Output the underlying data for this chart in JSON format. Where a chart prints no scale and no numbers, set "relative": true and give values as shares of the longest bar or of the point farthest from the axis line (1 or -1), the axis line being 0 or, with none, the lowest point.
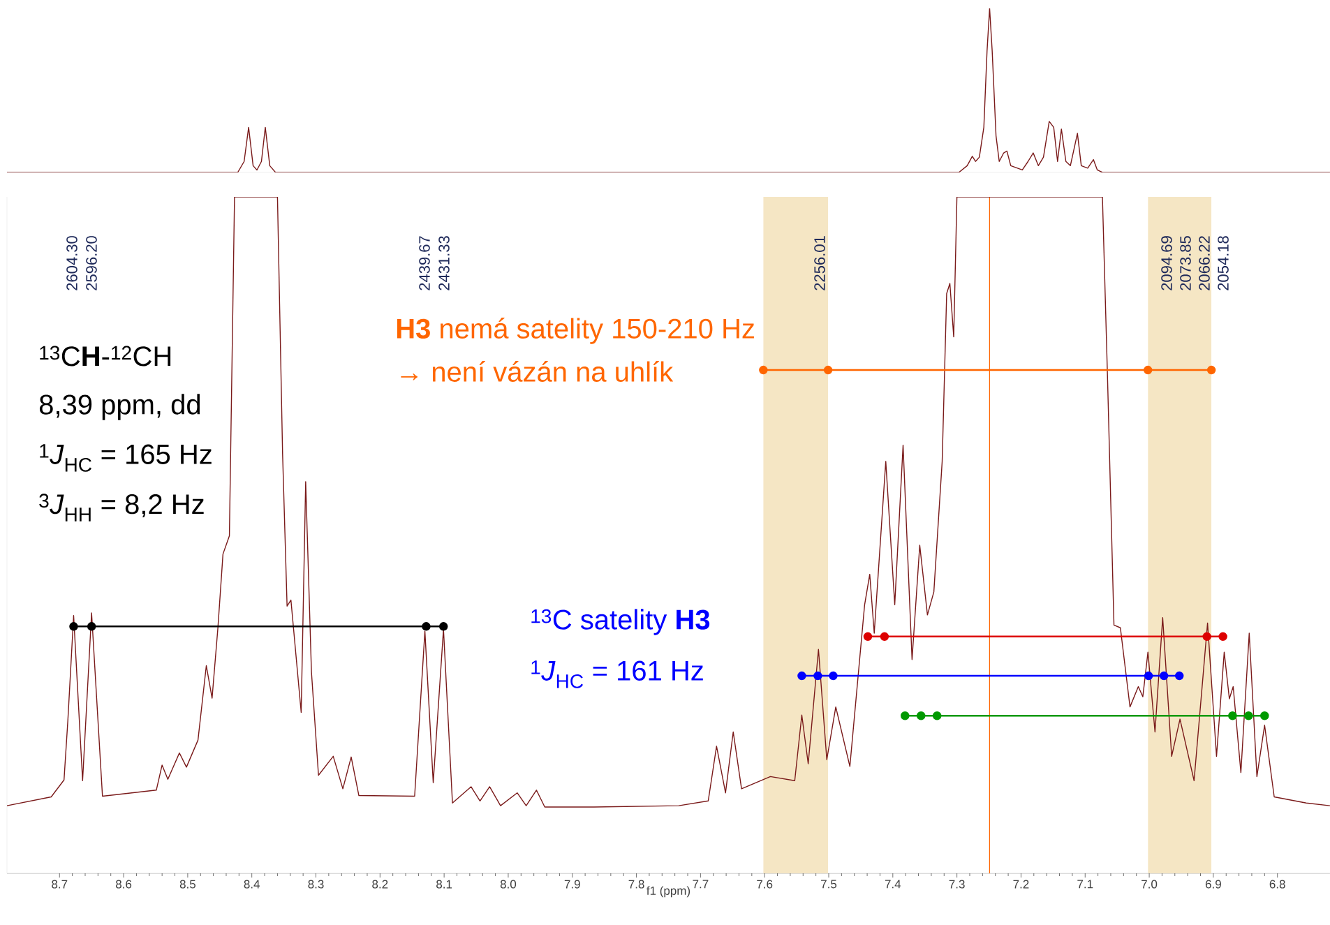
{
  "chart_data": [
    {
      "type": "line",
      "relative": true,
      "xlim": [
        8.782,
        6.718
      ],
      "color": "#7a1a1a",
      "x": [
        8.782,
        8.422,
        8.412,
        8.405,
        8.398,
        8.392,
        8.385,
        8.379,
        8.372,
        8.363,
        7.297,
        7.284,
        7.276,
        7.271,
        7.265,
        7.258,
        7.253,
        7.249,
        7.245,
        7.239,
        7.234,
        7.227,
        7.222,
        7.216,
        7.198,
        7.189,
        7.181,
        7.173,
        7.165,
        7.156,
        7.149,
        7.143,
        7.137,
        7.13,
        7.123,
        7.112,
        7.106,
        7.096,
        7.087,
        7.081,
        7.073,
        6.718
      ],
      "values": [
        0,
        0,
        0.067,
        0.275,
        0.041,
        0.015,
        0.067,
        0.275,
        0.041,
        0,
        0,
        0.041,
        0.098,
        0.067,
        0.093,
        0.275,
        0.741,
        1,
        0.741,
        0.223,
        0.067,
        0.119,
        0.13,
        0.041,
        0.015,
        0.067,
        0.119,
        0.041,
        0.093,
        0.311,
        0.275,
        0.067,
        0.264,
        0.067,
        0.041,
        0.238,
        0.041,
        0.026,
        0.078,
        0.015,
        0,
        0
      ]
    },
    {
      "type": "line",
      "relative": true,
      "xlim": [
        8.782,
        6.718
      ],
      "xlabel": "f1 (ppm)",
      "xticks": [
        8.7,
        8.6,
        8.5,
        8.4,
        8.3,
        8.2,
        8.1,
        {
          "value": 8,
          "label": "8.0"
        },
        7.9,
        7.8,
        7.7,
        7.6,
        7.5,
        7.4,
        7.3,
        7.2,
        7.1,
        {
          "value": 7,
          "label": "7.0"
        },
        6.9,
        6.8
      ],
      "bands": [
        {
          "axis": "x",
          "from": 7.602,
          "to": 7.501,
          "color": "#f5e6c4"
        },
        {
          "axis": "x",
          "from": 7.002,
          "to": 6.903,
          "color": "#f5e6c4"
        }
      ],
      "ref_lines": [
        {
          "axis": "x",
          "value": 7.249,
          "color": "#ff6600"
        }
      ],
      "series": [
        {
          "color": "#7a1a1a",
          "marker": "none",
          "x": [
            8.782,
            8.713,
            8.693,
            8.687,
            8.678,
            8.664,
            8.65,
            8.633,
            8.549,
            8.54,
            8.531,
            8.513,
            8.502,
            8.484,
            8.471,
            8.462,
            8.453,
            8.445,
            8.435,
            8.427,
            8.396,
            8.36,
            8.352,
            8.345,
            8.339,
            8.323,
            8.316,
            8.307,
            8.296,
            8.273,
            8.258,
            8.245,
            8.233,
            8.146,
            8.13,
            8.117,
            8.101,
            8.087,
            8.058,
            8.044,
            8.029,
            8.012,
            7.986,
            7.972,
            7.956,
            7.943,
            7.866,
            7.734,
            7.688,
            7.675,
            7.661,
            7.649,
            7.636,
            7.591,
            7.553,
            7.542,
            7.532,
            7.516,
            7.503,
            7.489,
            7.467,
            7.444,
            7.436,
            7.429,
            7.411,
            7.397,
            7.384,
            7.37,
            7.358,
            7.346,
            7.336,
            7.323,
            7.316,
            7.311,
            7.305,
            7.3,
            7.205,
            7.073,
            7.065,
            7.055,
            7.045,
            7.03,
            7.017,
            7.01,
            7.002,
            6.991,
            6.979,
            6.965,
            6.952,
            6.93,
            6.909,
            6.895,
            6.883,
            6.875,
            6.869,
            6.857,
            6.844,
            6.832,
            6.82,
            6.805,
            6.755,
            6.718
          ],
          "values": [
            0.1,
            0.113,
            0.138,
            0.226,
            0.381,
            0.137,
            0.385,
            0.114,
            0.123,
            0.16,
            0.139,
            0.178,
            0.157,
            0.197,
            0.307,
            0.259,
            0.362,
            0.472,
            0.499,
            1,
            1,
            1,
            0.62,
            0.395,
            0.404,
            0.238,
            0.579,
            0.298,
            0.145,
            0.173,
            0.125,
            0.172,
            0.115,
            0.114,
            0.358,
            0.134,
            0.361,
            0.104,
            0.128,
            0.107,
            0.128,
            0.1,
            0.119,
            0.1,
            0.123,
            0.098,
            0.098,
            0.1,
            0.107,
            0.188,
            0.119,
            0.209,
            0.125,
            0.143,
            0.137,
            0.234,
            0.162,
            0.331,
            0.168,
            0.246,
            0.158,
            0.397,
            0.442,
            0.355,
            0.609,
            0.397,
            0.633,
            0.316,
            0.485,
            0.382,
            0.416,
            0.609,
            0.857,
            0.872,
            0.793,
            1,
            1,
            1,
            0.731,
            0.367,
            0.363,
            0.246,
            0.276,
            0.261,
            0.327,
            0.209,
            0.378,
            0.173,
            0.228,
            0.137,
            0.37,
            0.173,
            0.327,
            0.258,
            0.276,
            0.149,
            0.355,
            0.143,
            0.219,
            0.113,
            0.104,
            0.1
          ]
        },
        {
          "color": "#000000",
          "marker": "circle",
          "x": [
            8.678,
            8.65,
            8.128,
            8.101
          ],
          "values": [
            0.365,
            0.365,
            0.365,
            0.365
          ]
        },
        {
          "color": "#dd0000",
          "marker": "circle",
          "x": [
            7.439,
            7.413,
            6.91,
            6.885
          ],
          "values": [
            0.35,
            0.35,
            0.35,
            0.35
          ]
        },
        {
          "color": "#0000ff",
          "marker": "circle",
          "x": [
            7.542,
            7.517,
            7.493,
            7.001,
            6.977,
            6.953
          ],
          "values": [
            0.292,
            0.292,
            0.292,
            0.292,
            0.292,
            0.292
          ]
        },
        {
          "color": "#009900",
          "marker": "circle",
          "x": [
            7.381,
            7.356,
            7.331,
            6.87,
            6.845,
            6.82
          ],
          "values": [
            0.233,
            0.233,
            0.233,
            0.233,
            0.233,
            0.233
          ]
        },
        {
          "color": "#ff6600",
          "marker": "circle",
          "x": [
            7.602,
            7.501,
            7.002,
            6.903
          ],
          "values": [
            0.744,
            0.744,
            0.744,
            0.744
          ]
        }
      ],
      "annotations": [
        "2604.30",
        "2596.20",
        "2439.67",
        "2431.33",
        "2256.01",
        "2094.69",
        "2073.85",
        "2066.22",
        "2054.18",
        "$^{13}$C**H**-$^{12}$CH",
        "8,39 ppm, dd",
        "$^{1}$*J*$_{HC}$ = 165 Hz",
        "$^{3}$*J*$_{HH}$ = 8,2 Hz",
        "**H3** nemá satelity 150-210 Hz",
        "→  není vázán na uhlík",
        "$^{13}$C satelity **H3**",
        "$^{1}$*J*$_{HC}$ = 161 Hz"
      ]
    }
  ]
}
